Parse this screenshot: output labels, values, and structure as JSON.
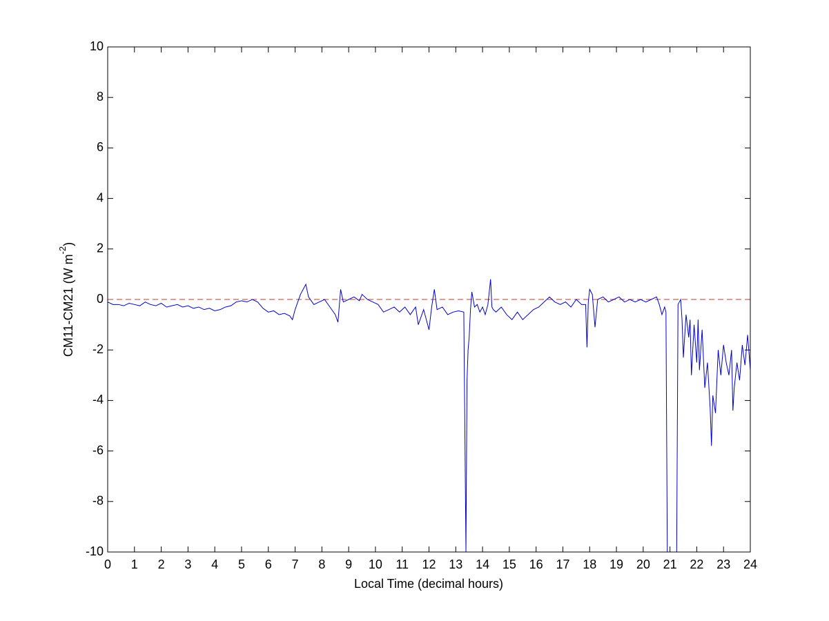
{
  "chart_data": {
    "type": "line",
    "xlabel": "Local Time (decimal hours)",
    "ylabel": {
      "text": "CM11-CM21 (W m",
      "sup": "-2",
      "close": ")"
    },
    "xlim": [
      0,
      24
    ],
    "ylim": [
      -10,
      10
    ],
    "xticks": [
      0,
      1,
      2,
      3,
      4,
      5,
      6,
      7,
      8,
      9,
      10,
      11,
      12,
      13,
      14,
      15,
      16,
      17,
      18,
      19,
      20,
      21,
      22,
      23,
      24
    ],
    "yticks": [
      -10,
      -8,
      -6,
      -4,
      -2,
      0,
      2,
      4,
      6,
      8,
      10
    ],
    "reference_line": {
      "value": 0,
      "color": "#c0392b",
      "style": "dashed"
    },
    "box": true,
    "series": [
      {
        "color": "#0000cc",
        "x": [
          0,
          0.2,
          0.4,
          0.6,
          0.8,
          1.0,
          1.2,
          1.4,
          1.6,
          1.8,
          2.0,
          2.2,
          2.4,
          2.6,
          2.8,
          3.0,
          3.2,
          3.4,
          3.6,
          3.8,
          4.0,
          4.2,
          4.4,
          4.6,
          4.8,
          5.0,
          5.2,
          5.4,
          5.6,
          5.8,
          6.0,
          6.2,
          6.4,
          6.6,
          6.8,
          6.9,
          7.0,
          7.1,
          7.2,
          7.3,
          7.4,
          7.5,
          7.7,
          7.9,
          8.1,
          8.3,
          8.5,
          8.6,
          8.7,
          8.8,
          9.0,
          9.2,
          9.4,
          9.5,
          9.7,
          9.9,
          10.1,
          10.3,
          10.5,
          10.7,
          10.9,
          11.1,
          11.3,
          11.5,
          11.6,
          11.8,
          12.0,
          12.1,
          12.2,
          12.3,
          12.5,
          12.7,
          12.9,
          13.1,
          13.3,
          13.38,
          13.42,
          13.46,
          13.5,
          13.55,
          13.6,
          13.7,
          13.8,
          13.9,
          14.0,
          14.1,
          14.2,
          14.3,
          14.35,
          14.4,
          14.5,
          14.7,
          14.9,
          15.1,
          15.3,
          15.5,
          15.7,
          15.9,
          16.1,
          16.3,
          16.5,
          16.7,
          16.9,
          17.1,
          17.3,
          17.5,
          17.7,
          17.85,
          17.9,
          17.95,
          18.0,
          18.1,
          18.2,
          18.3,
          18.5,
          18.7,
          18.9,
          19.1,
          19.3,
          19.5,
          19.7,
          19.9,
          20.1,
          20.3,
          20.5,
          20.6,
          20.7,
          20.8,
          20.85,
          20.9,
          21.0,
          21.2,
          21.25,
          21.3,
          21.4,
          21.45,
          21.5,
          21.6,
          21.7,
          21.75,
          21.8,
          21.9,
          22.0,
          22.05,
          22.1,
          22.2,
          22.3,
          22.4,
          22.5,
          22.55,
          22.6,
          22.7,
          22.8,
          22.9,
          23.0,
          23.1,
          23.2,
          23.3,
          23.35,
          23.4,
          23.5,
          23.6,
          23.7,
          23.8,
          23.9,
          24.0
        ],
        "values": [
          -0.1,
          -0.2,
          -0.2,
          -0.25,
          -0.15,
          -0.2,
          -0.25,
          -0.1,
          -0.2,
          -0.25,
          -0.15,
          -0.3,
          -0.25,
          -0.2,
          -0.3,
          -0.25,
          -0.35,
          -0.3,
          -0.4,
          -0.35,
          -0.45,
          -0.4,
          -0.3,
          -0.25,
          -0.1,
          -0.05,
          -0.1,
          0.0,
          -0.1,
          -0.35,
          -0.5,
          -0.45,
          -0.6,
          -0.55,
          -0.65,
          -0.8,
          -0.4,
          -0.1,
          0.2,
          0.4,
          0.6,
          0.1,
          -0.2,
          -0.1,
          0.0,
          -0.3,
          -0.6,
          -0.9,
          0.4,
          -0.1,
          0.0,
          0.1,
          -0.05,
          0.2,
          0.0,
          -0.1,
          -0.2,
          -0.5,
          -0.4,
          -0.3,
          -0.5,
          -0.3,
          -0.6,
          -0.3,
          -1.0,
          -0.4,
          -1.2,
          -0.3,
          0.4,
          -0.4,
          -0.3,
          -0.6,
          -0.5,
          -0.45,
          -0.5,
          -10,
          -3.2,
          -2.0,
          -1.5,
          -0.4,
          0.3,
          -0.3,
          -0.2,
          -0.5,
          -0.3,
          -0.6,
          -0.2,
          0.8,
          -0.3,
          -0.4,
          -0.5,
          -0.3,
          -0.6,
          -0.8,
          -0.5,
          -0.8,
          -0.6,
          -0.4,
          -0.3,
          -0.1,
          0.1,
          -0.1,
          -0.2,
          -0.1,
          -0.3,
          0.0,
          -0.2,
          -0.2,
          -1.9,
          -0.1,
          0.4,
          0.2,
          -1.1,
          0.0,
          0.1,
          -0.1,
          0.0,
          0.1,
          -0.1,
          0.0,
          -0.1,
          0.0,
          -0.1,
          0.0,
          0.1,
          -0.2,
          -0.6,
          -0.3,
          -0.5,
          -10,
          -10,
          -10,
          -10,
          -0.2,
          0.0,
          -0.8,
          -2.3,
          -0.6,
          -1.5,
          -0.8,
          -3.0,
          -1.0,
          -2.5,
          -0.8,
          -2.8,
          -1.2,
          -3.5,
          -2.5,
          -4.3,
          -5.8,
          -3.8,
          -4.5,
          -2.0,
          -3.0,
          -1.8,
          -2.5,
          -3.0,
          -2.0,
          -4.4,
          -3.5,
          -2.5,
          -3.2,
          -1.8,
          -2.6,
          -1.4,
          -2.8
        ]
      }
    ]
  }
}
